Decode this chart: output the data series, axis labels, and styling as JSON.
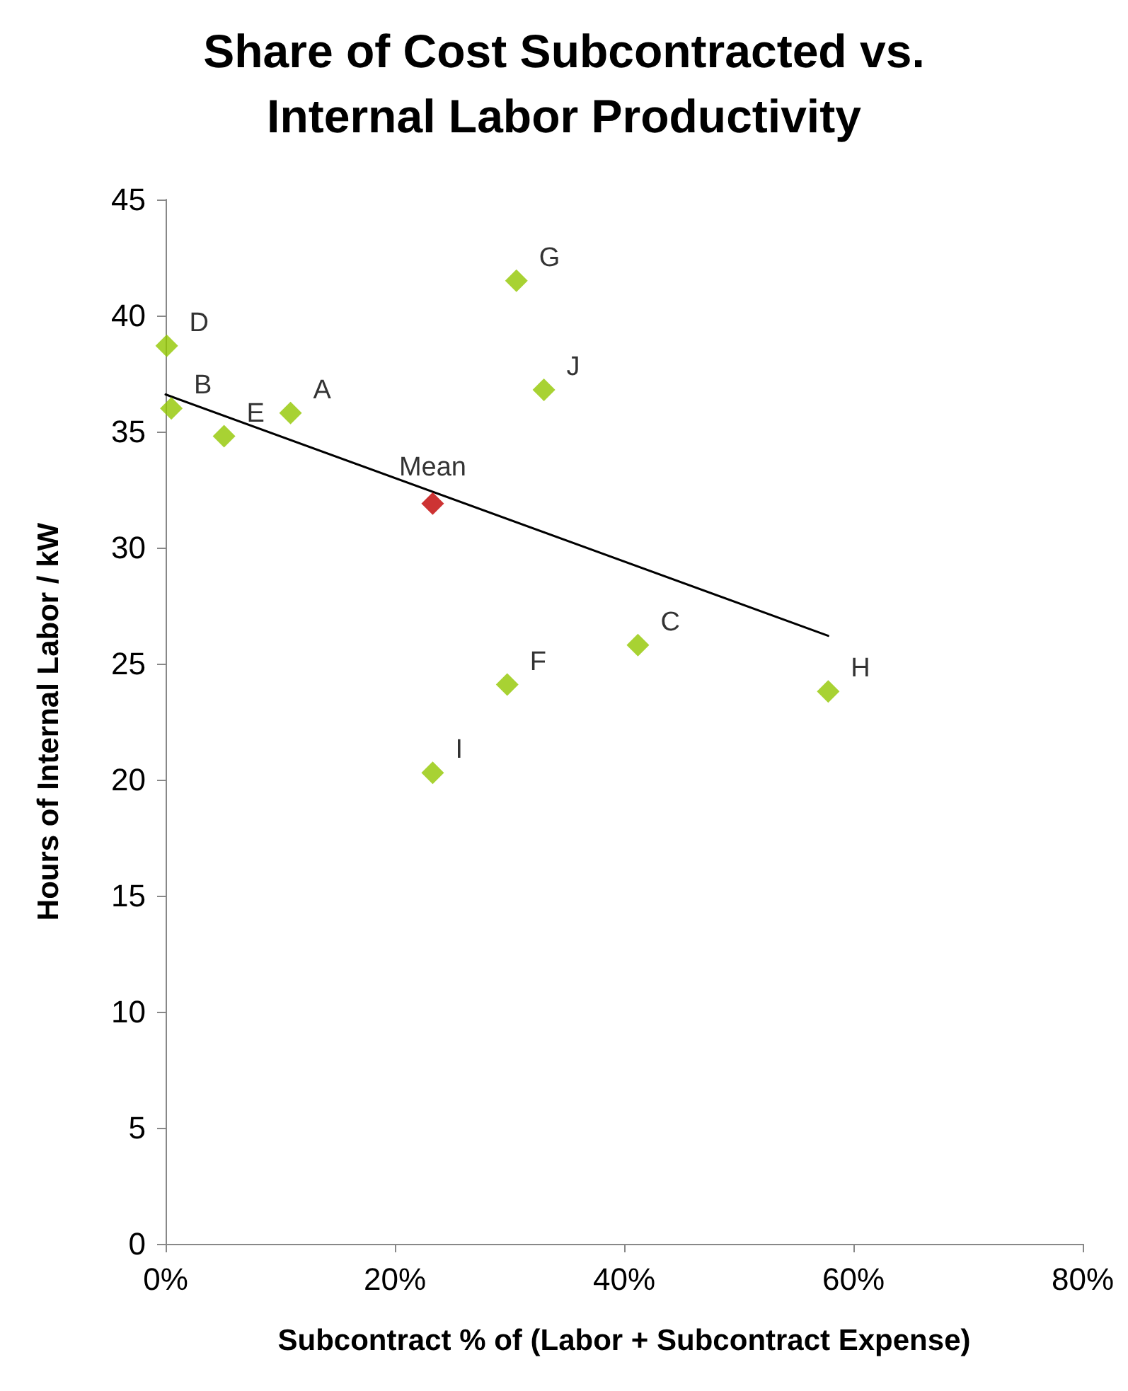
{
  "chart_data": {
    "type": "scatter",
    "title": "Share of Cost Subcontracted vs.\nInternal Labor Productivity",
    "xlabel": "Subcontract % of (Labor + Subcontract Expense)",
    "ylabel": "Hours of Internal Labor / kW",
    "series": [
      {
        "x": [
          0.1,
          0.5,
          5.1,
          10.9,
          30.6,
          33.0,
          41.2,
          29.8,
          57.8,
          23.3
        ],
        "values": [
          38.7,
          36.0,
          34.8,
          35.8,
          41.5,
          36.8,
          25.8,
          24.1,
          23.8,
          20.3
        ],
        "color": "#92c700",
        "value_labels": [
          "D",
          "B",
          "E",
          "A",
          "G",
          "J",
          "C",
          "F",
          "H",
          "I"
        ]
      },
      {
        "x": [
          23.3
        ],
        "values": [
          31.9
        ],
        "color": "#c00000",
        "value_labels": [
          "Mean"
        ]
      },
      {
        "type": "line",
        "x": [
          0,
          57.8
        ],
        "values": [
          36.6,
          26.2
        ],
        "color": "#000000",
        "marker": "none"
      }
    ],
    "xlim": [
      0,
      80
    ],
    "xticks": [
      {
        "value": 0,
        "label": "0%"
      },
      {
        "value": 20,
        "label": "20%"
      },
      {
        "value": 40,
        "label": "40%"
      },
      {
        "value": 60,
        "label": "60%"
      },
      {
        "value": 80,
        "label": "80%"
      }
    ],
    "ylim": [
      0,
      45
    ],
    "yticks": [
      0,
      5,
      10,
      15,
      20,
      25,
      30,
      35,
      40,
      45
    ],
    "marker": "diamond"
  }
}
